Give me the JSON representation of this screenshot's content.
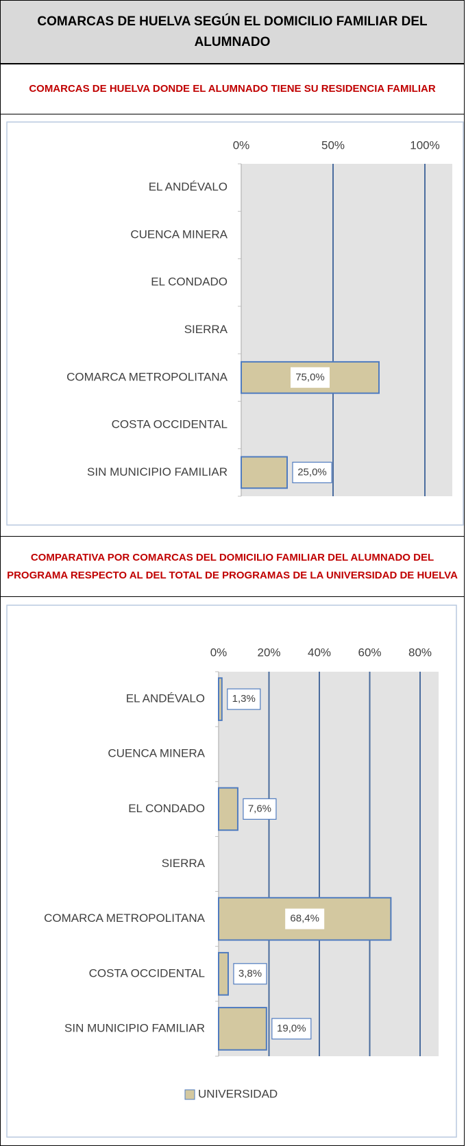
{
  "header": {
    "title": "COMARCAS DE HUELVA SEGÚN EL DOMICILIO FAMILIAR DEL ALUMNADO"
  },
  "chart_data": [
    {
      "type": "bar",
      "orientation": "horizontal",
      "title": "COMARCAS DE HUELVA DONDE EL ALUMNADO TIENE SU RESIDENCIA FAMILIAR",
      "categories": [
        "EL ANDÉVALO",
        "CUENCA MINERA",
        "EL CONDADO",
        "SIERRA",
        "COMARCA METROPOLITANA",
        "COSTA OCCIDENTAL",
        "SIN MUNICIPIO FAMILIAR"
      ],
      "values": [
        null,
        null,
        null,
        null,
        75.0,
        null,
        25.0
      ],
      "value_labels": [
        null,
        null,
        null,
        null,
        "75,0%",
        null,
        "25,0%"
      ],
      "color": "#d3c8a0",
      "xlim": [
        0,
        100
      ],
      "xticks": [
        {
          "value": 0,
          "label": "0%"
        },
        {
          "value": 50,
          "label": "50%"
        },
        {
          "value": 100,
          "label": "100%"
        }
      ],
      "grid": true
    },
    {
      "type": "bar",
      "orientation": "horizontal",
      "title": "COMPARATIVA POR COMARCAS DEL DOMICILIO FAMILIAR DEL ALUMNADO DEL PROGRAMA RESPECTO AL DEL TOTAL DE PROGRAMAS DE LA UNIVERSIDAD DE HUELVA",
      "categories": [
        "EL ANDÉVALO",
        "CUENCA MINERA",
        "EL CONDADO",
        "SIERRA",
        "COMARCA METROPOLITANA",
        "COSTA OCCIDENTAL",
        "SIN MUNICIPIO FAMILIAR"
      ],
      "series": [
        {
          "name": "UNIVERSIDAD",
          "color": "#d3c8a0",
          "values": [
            1.3,
            null,
            7.6,
            null,
            68.4,
            3.8,
            19.0
          ],
          "value_labels": [
            "1,3%",
            null,
            "7,6%",
            null,
            "68,4%",
            "3,8%",
            "19,0%"
          ]
        }
      ],
      "xlim": [
        0,
        80
      ],
      "xticks": [
        {
          "value": 0,
          "label": "0%"
        },
        {
          "value": 20,
          "label": "20%"
        },
        {
          "value": 40,
          "label": "40%"
        },
        {
          "value": 60,
          "label": "60%"
        },
        {
          "value": 80,
          "label": "80%"
        }
      ],
      "grid": true,
      "legend": "bottom"
    }
  ]
}
